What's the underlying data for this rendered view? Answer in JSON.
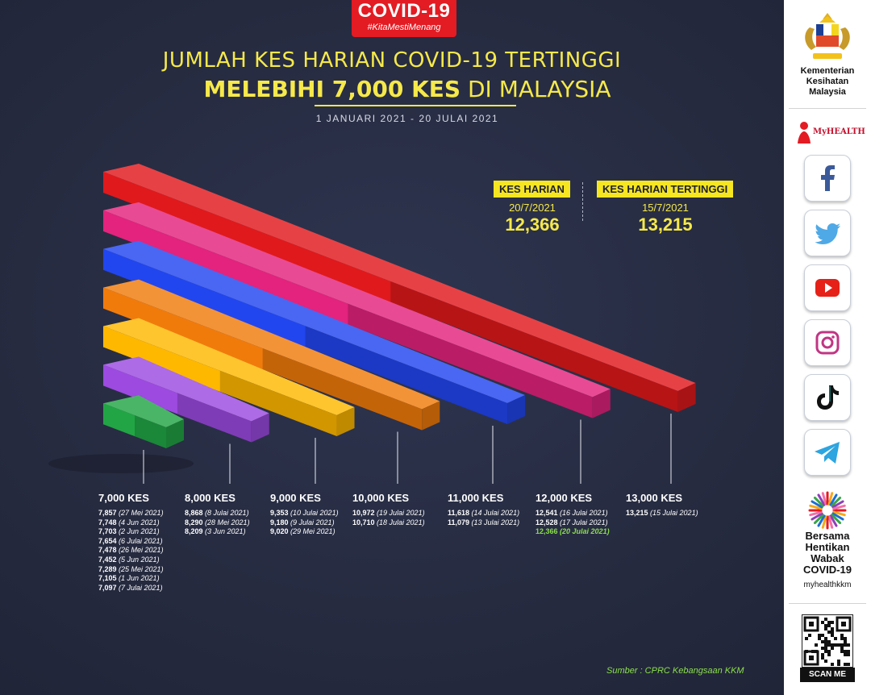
{
  "header": {
    "badge_title": "COVID-19",
    "badge_hashtag": "#KitaMestiMenang",
    "title_line1": "JUMLAH KES HARIAN COVID-19 TERTINGGI",
    "title_line2_bold": "MELEBIHI 7,000 KES",
    "title_line2_rest": " DI MALAYSIA",
    "date_range": "1 JANUARI 2021 - 20 JULAI 2021"
  },
  "highlights": {
    "today_label": "KES HARIAN",
    "today_date": "20/7/2021",
    "today_value": "12,366",
    "peak_label": "KES HARIAN TERTINGGI",
    "peak_date": "15/7/2021",
    "peak_value": "13,215"
  },
  "chart_data": {
    "type": "bar",
    "categories": [
      "7,000 KES",
      "8,000 KES",
      "9,000 KES",
      "10,000 KES",
      "11,000 KES",
      "12,000 KES",
      "13,000 KES"
    ],
    "values": [
      7000,
      8000,
      9000,
      10000,
      11000,
      12000,
      13000
    ],
    "colors": [
      "#22a545",
      "#9c4ae0",
      "#ffb800",
      "#f07b0b",
      "#2146ef",
      "#e3237d",
      "#e0191c"
    ],
    "groups": [
      {
        "label": "7,000 KES",
        "entries": [
          {
            "value": "7,857",
            "date": "(27 Mei 2021)"
          },
          {
            "value": "7,748",
            "date": "(4 Jun 2021)"
          },
          {
            "value": "7,703",
            "date": "(2 Jun 2021)"
          },
          {
            "value": "7,654",
            "date": "(6 Julai 2021)"
          },
          {
            "value": "7,478",
            "date": "(26 Mei 2021)"
          },
          {
            "value": "7,452",
            "date": "(5 Jun 2021)"
          },
          {
            "value": "7,289",
            "date": "(25 Mei 2021)"
          },
          {
            "value": "7,105",
            "date": "(1 Jun 2021)"
          },
          {
            "value": "7,097",
            "date": "(7 Julai 2021)"
          }
        ]
      },
      {
        "label": "8,000 KES",
        "entries": [
          {
            "value": "8,868",
            "date": "(8 Julai 2021)"
          },
          {
            "value": "8,290",
            "date": "(28 Mei 2021)"
          },
          {
            "value": "8,209",
            "date": "(3 Jun 2021)"
          }
        ]
      },
      {
        "label": "9,000 KES",
        "entries": [
          {
            "value": "9,353",
            "date": "(10 Julai 2021)"
          },
          {
            "value": "9,180",
            "date": "(9 Julai 2021)"
          },
          {
            "value": "9,020",
            "date": "(29 Mei 2021)"
          }
        ]
      },
      {
        "label": "10,000 KES",
        "entries": [
          {
            "value": "10,972",
            "date": "(19 Julai 2021)"
          },
          {
            "value": "10,710",
            "date": "(18 Julai 2021)"
          }
        ]
      },
      {
        "label": "11,000 KES",
        "entries": [
          {
            "value": "11,618",
            "date": "(14 Julai 2021)"
          },
          {
            "value": "11,079",
            "date": "(13 Julai 2021)"
          }
        ]
      },
      {
        "label": "12,000 KES",
        "entries": [
          {
            "value": "12,541",
            "date": "(16 Julai 2021)"
          },
          {
            "value": "12,528",
            "date": "(17 Julai 2021)"
          },
          {
            "value": "12,366",
            "date": "(20 Julai 2021)",
            "highlight": true
          }
        ]
      },
      {
        "label": "13,000 KES",
        "entries": [
          {
            "value": "13,215",
            "date": "(15 Julai 2021)"
          }
        ]
      }
    ]
  },
  "footer": {
    "source": "Sumber : CPRC Kebangsaan KKM"
  },
  "sidebar": {
    "ministry_lines": [
      "Kementerian",
      "Kesihatan",
      "Malaysia"
    ],
    "myhealth_label": "MyHEALTH",
    "social_icons": [
      "facebook-icon",
      "twitter-icon",
      "youtube-icon",
      "instagram-icon",
      "tiktok-icon",
      "telegram-icon"
    ],
    "campaign_lines": [
      "Bersama",
      "Hentikan",
      "Wabak",
      "COVID-19"
    ],
    "handle": "myhealthkkm",
    "scan_label": "SCAN ME"
  }
}
